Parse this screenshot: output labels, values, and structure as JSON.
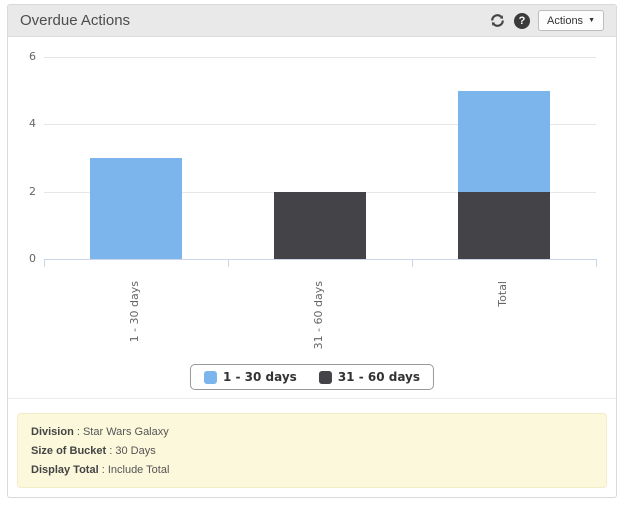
{
  "header": {
    "title": "Overdue Actions",
    "actions_label": "Actions",
    "help_glyph": "?",
    "caret_glyph": "▼"
  },
  "chart_data": {
    "type": "bar",
    "stacked": true,
    "title": "",
    "xlabel": "",
    "ylabel": "",
    "categories": [
      "1 - 30 days",
      "31 - 60 days",
      "Total"
    ],
    "series": [
      {
        "name": "1 - 30 days",
        "color": "#7cb5ec",
        "values": [
          3,
          0,
          3
        ]
      },
      {
        "name": "31 - 60 days",
        "color": "#434348",
        "values": [
          0,
          2,
          2
        ]
      }
    ],
    "ylim": [
      0,
      6
    ],
    "yticks": [
      0,
      2,
      4,
      6
    ],
    "grid": true,
    "legend_position": "bottom"
  },
  "info": {
    "separator": " : ",
    "rows": [
      {
        "label": "Division",
        "value": "Star Wars Galaxy"
      },
      {
        "label": "Size of Bucket",
        "value": "30 Days"
      },
      {
        "label": "Display Total",
        "value": "Include Total"
      }
    ]
  },
  "colors": {
    "header_bg": "#e9e9e9",
    "info_bg": "#fcf8dc",
    "axis_line": "#ccd6eb",
    "gridline": "#e6e6e6",
    "series_blue": "#7cb5ec",
    "series_dark": "#434348"
  }
}
